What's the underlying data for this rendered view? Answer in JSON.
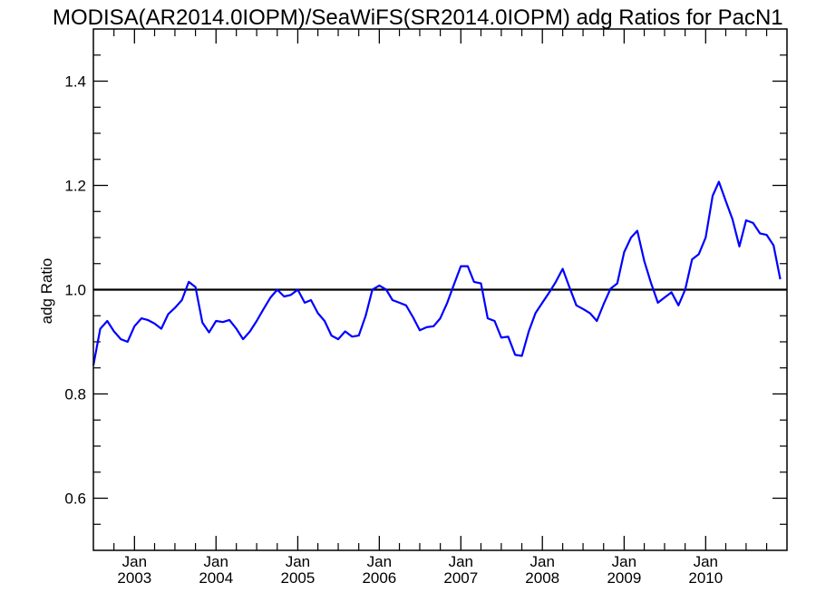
{
  "chart_data": {
    "type": "line",
    "title": "MODISA(AR2014.0IOPM)/SeaWiFS(SR2014.0IOPM)  adg Ratios for PacN1",
    "xlabel": "",
    "ylabel": "adg Ratio",
    "ylim": [
      0.5,
      1.5
    ],
    "xlim": [
      "2002-07-01",
      "2010-12-31"
    ],
    "y_ticks": [
      "0.6",
      "0.8",
      "1.0",
      "1.2",
      "1.4"
    ],
    "x_ticks": [
      {
        "month": "Jan",
        "year": "2003",
        "date": "2003-01-01"
      },
      {
        "month": "Jan",
        "year": "2004",
        "date": "2004-01-01"
      },
      {
        "month": "Jan",
        "year": "2005",
        "date": "2005-01-01"
      },
      {
        "month": "Jan",
        "year": "2006",
        "date": "2006-01-01"
      },
      {
        "month": "Jan",
        "year": "2007",
        "date": "2007-01-01"
      },
      {
        "month": "Jan",
        "year": "2008",
        "date": "2008-01-01"
      },
      {
        "month": "Jan",
        "year": "2009",
        "date": "2009-01-01"
      },
      {
        "month": "Jan",
        "year": "2010",
        "date": "2010-01-01"
      }
    ],
    "reference_line": {
      "y": 1.0,
      "color": "#000000"
    },
    "grid": false,
    "series": [
      {
        "color": "#0000ff",
        "x": [
          "2002-07-01",
          "2002-08-01",
          "2002-09-01",
          "2002-10-01",
          "2002-11-01",
          "2002-12-01",
          "2003-01-01",
          "2003-02-01",
          "2003-03-01",
          "2003-04-01",
          "2003-05-01",
          "2003-06-01",
          "2003-07-01",
          "2003-08-01",
          "2003-09-01",
          "2003-10-01",
          "2003-11-01",
          "2003-12-01",
          "2004-01-01",
          "2004-02-01",
          "2004-03-01",
          "2004-04-01",
          "2004-05-01",
          "2004-06-01",
          "2004-07-01",
          "2004-08-01",
          "2004-09-01",
          "2004-10-01",
          "2004-11-01",
          "2004-12-01",
          "2005-01-01",
          "2005-02-01",
          "2005-03-01",
          "2005-04-01",
          "2005-05-01",
          "2005-06-01",
          "2005-07-01",
          "2005-08-01",
          "2005-09-01",
          "2005-10-01",
          "2005-11-01",
          "2005-12-01",
          "2006-01-01",
          "2006-02-01",
          "2006-03-01",
          "2006-04-01",
          "2006-05-01",
          "2006-06-01",
          "2006-07-01",
          "2006-08-01",
          "2006-09-01",
          "2006-10-01",
          "2006-11-01",
          "2006-12-01",
          "2007-01-01",
          "2007-02-01",
          "2007-03-01",
          "2007-04-01",
          "2007-05-01",
          "2007-06-01",
          "2007-07-01",
          "2007-08-01",
          "2007-09-01",
          "2007-10-01",
          "2007-11-01",
          "2007-12-01",
          "2008-01-01",
          "2008-02-01",
          "2008-03-01",
          "2008-04-01",
          "2008-05-01",
          "2008-06-01",
          "2008-07-01",
          "2008-08-01",
          "2008-09-01",
          "2008-10-01",
          "2008-11-01",
          "2008-12-01",
          "2009-01-01",
          "2009-02-01",
          "2009-03-01",
          "2009-04-01",
          "2009-05-01",
          "2009-06-01",
          "2009-07-01",
          "2009-08-01",
          "2009-09-01",
          "2009-10-01",
          "2009-11-01",
          "2009-12-01",
          "2010-01-01",
          "2010-02-01",
          "2010-03-01",
          "2010-04-01",
          "2010-05-01",
          "2010-06-01",
          "2010-07-01",
          "2010-08-01",
          "2010-09-01",
          "2010-10-01",
          "2010-11-01",
          "2010-12-01"
        ],
        "y": [
          0.855,
          0.925,
          0.94,
          0.92,
          0.905,
          0.9,
          0.93,
          0.945,
          0.942,
          0.935,
          0.925,
          0.953,
          0.965,
          0.98,
          1.015,
          1.005,
          0.937,
          0.918,
          0.94,
          0.938,
          0.942,
          0.925,
          0.905,
          0.92,
          0.94,
          0.963,
          0.985,
          1.0,
          0.987,
          0.99,
          1.0,
          0.975,
          0.98,
          0.955,
          0.94,
          0.912,
          0.905,
          0.92,
          0.91,
          0.912,
          0.95,
          1.0,
          1.008,
          1.0,
          0.98,
          0.975,
          0.97,
          0.947,
          0.922,
          0.928,
          0.93,
          0.945,
          0.975,
          1.01,
          1.045,
          1.045,
          1.015,
          1.012,
          0.945,
          0.94,
          0.908,
          0.91,
          0.875,
          0.873,
          0.92,
          0.955,
          0.975,
          0.995,
          1.015,
          1.04,
          1.005,
          0.97,
          0.963,
          0.955,
          0.94,
          0.972,
          1.002,
          1.012,
          1.072,
          1.1,
          1.113,
          1.055,
          1.013,
          0.975,
          0.985,
          0.995,
          0.97,
          1.0,
          1.058,
          1.068,
          1.1,
          1.18,
          1.207,
          1.17,
          1.135,
          1.083,
          1.133,
          1.128,
          1.108,
          1.105,
          1.085,
          1.02
        ]
      }
    ]
  }
}
